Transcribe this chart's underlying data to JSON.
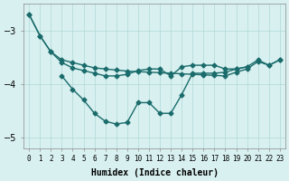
{
  "xlabel": "Humidex (Indice chaleur)",
  "x": [
    0,
    1,
    2,
    3,
    4,
    5,
    6,
    7,
    8,
    9,
    10,
    11,
    12,
    13,
    14,
    15,
    16,
    17,
    18,
    19,
    20,
    21,
    22,
    23
  ],
  "line1": [
    -2.7,
    -3.1,
    -3.4,
    -3.55,
    -3.6,
    -3.65,
    -3.7,
    -3.72,
    -3.74,
    -3.76,
    -3.77,
    -3.78,
    -3.79,
    -3.8,
    -3.81,
    -3.82,
    -3.83,
    -3.84,
    -3.85,
    -3.78,
    -3.72,
    -3.58,
    -3.65,
    -3.55
  ],
  "line2": [
    -2.7,
    -3.1,
    -3.4,
    -3.6,
    -3.7,
    -3.75,
    -3.8,
    -3.85,
    -3.85,
    -3.82,
    -3.75,
    -3.72,
    -3.72,
    -3.85,
    -3.68,
    -3.65,
    -3.65,
    -3.65,
    -3.72,
    -3.72,
    -3.68,
    -3.55,
    -3.65,
    -3.55
  ],
  "line3": [
    null,
    null,
    null,
    -3.85,
    -4.1,
    -4.3,
    -4.55,
    -4.7,
    -4.75,
    -4.72,
    -4.35,
    -4.35,
    -4.55,
    -4.55,
    -4.2,
    -3.8,
    -3.8,
    -3.8,
    -3.78,
    -3.72,
    -3.68,
    null,
    null,
    null
  ],
  "ylim": [
    -5.2,
    -2.5
  ],
  "yticks": [
    -5,
    -4,
    -3
  ],
  "bg_color": "#d8f0f0",
  "line_color": "#1a6b6b",
  "grid_color": "#b0d8d8",
  "marker": "D",
  "markersize": 2.5,
  "linewidth": 1.0
}
